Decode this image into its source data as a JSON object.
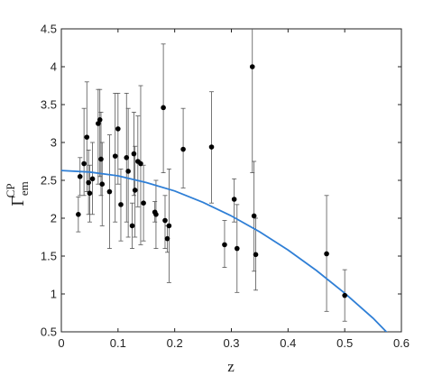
{
  "chart_data": {
    "type": "scatter",
    "xlabel": "z",
    "ylabel": {
      "base": "Γ",
      "sup": "CP",
      "sub": "em"
    },
    "xlim": [
      0,
      0.6
    ],
    "ylim": [
      0.5,
      4.5
    ],
    "xticks": [
      "0",
      "0.1",
      "0.2",
      "0.3",
      "0.4",
      "0.5",
      "0.6"
    ],
    "yticks": [
      "0.5",
      "1",
      "1.5",
      "2",
      "2.5",
      "3",
      "3.5",
      "4",
      "4.5"
    ],
    "grid": false,
    "colors": {
      "points": "#000000",
      "errorbars": "#555555",
      "fit_line": "#2f7fd6"
    },
    "points": [
      {
        "x": 0.03,
        "y": 2.05,
        "ylo": 1.82,
        "yhi": 2.28
      },
      {
        "x": 0.033,
        "y": 2.55,
        "ylo": 2.3,
        "yhi": 2.8
      },
      {
        "x": 0.04,
        "y": 2.72,
        "ylo": 2.3,
        "yhi": 3.45
      },
      {
        "x": 0.045,
        "y": 3.07,
        "ylo": 2.35,
        "yhi": 3.8
      },
      {
        "x": 0.048,
        "y": 2.47,
        "ylo": 2.05,
        "yhi": 2.9
      },
      {
        "x": 0.05,
        "y": 2.33,
        "ylo": 1.95,
        "yhi": 2.7
      },
      {
        "x": 0.055,
        "y": 2.52,
        "ylo": 2.05,
        "yhi": 3.0
      },
      {
        "x": 0.065,
        "y": 3.25,
        "ylo": 2.45,
        "yhi": 3.7
      },
      {
        "x": 0.068,
        "y": 3.3,
        "ylo": 2.55,
        "yhi": 3.7
      },
      {
        "x": 0.07,
        "y": 2.78,
        "ylo": 2.3,
        "yhi": 3.4
      },
      {
        "x": 0.072,
        "y": 2.45,
        "ylo": 1.9,
        "yhi": 3.0
      },
      {
        "x": 0.085,
        "y": 2.35,
        "ylo": 1.6,
        "yhi": 3.1
      },
      {
        "x": 0.095,
        "y": 2.82,
        "ylo": 1.95,
        "yhi": 3.65
      },
      {
        "x": 0.1,
        "y": 3.18,
        "ylo": 2.45,
        "yhi": 3.65
      },
      {
        "x": 0.105,
        "y": 2.18,
        "ylo": 1.7,
        "yhi": 2.65
      },
      {
        "x": 0.115,
        "y": 2.8,
        "ylo": 1.95,
        "yhi": 3.65
      },
      {
        "x": 0.118,
        "y": 2.62,
        "ylo": 1.75,
        "yhi": 3.45
      },
      {
        "x": 0.125,
        "y": 1.9,
        "ylo": 1.6,
        "yhi": 2.2
      },
      {
        "x": 0.128,
        "y": 2.85,
        "ylo": 2.3,
        "yhi": 3.4
      },
      {
        "x": 0.13,
        "y": 2.37,
        "ylo": 1.75,
        "yhi": 2.95
      },
      {
        "x": 0.135,
        "y": 2.75,
        "ylo": 2.15,
        "yhi": 3.35
      },
      {
        "x": 0.14,
        "y": 2.72,
        "ylo": 1.65,
        "yhi": 3.75
      },
      {
        "x": 0.145,
        "y": 2.2,
        "ylo": 1.7,
        "yhi": 2.7
      },
      {
        "x": 0.165,
        "y": 2.08,
        "ylo": 1.95,
        "yhi": 2.22
      },
      {
        "x": 0.167,
        "y": 2.05,
        "ylo": 1.6,
        "yhi": 2.5
      },
      {
        "x": 0.18,
        "y": 3.46,
        "ylo": 2.6,
        "yhi": 4.3
      },
      {
        "x": 0.183,
        "y": 1.97,
        "ylo": 1.6,
        "yhi": 2.3
      },
      {
        "x": 0.187,
        "y": 1.73,
        "ylo": 1.55,
        "yhi": 1.9
      },
      {
        "x": 0.19,
        "y": 1.9,
        "ylo": 1.15,
        "yhi": 2.65
      },
      {
        "x": 0.215,
        "y": 2.91,
        "ylo": 2.4,
        "yhi": 3.45
      },
      {
        "x": 0.265,
        "y": 2.94,
        "ylo": 2.2,
        "yhi": 3.67
      },
      {
        "x": 0.288,
        "y": 1.65,
        "ylo": 1.35,
        "yhi": 1.97
      },
      {
        "x": 0.305,
        "y": 2.25,
        "ylo": 1.95,
        "yhi": 2.52
      },
      {
        "x": 0.31,
        "y": 1.6,
        "ylo": 1.02,
        "yhi": 2.18
      },
      {
        "x": 0.337,
        "y": 4.0,
        "ylo": 2.6,
        "yhi": 4.5
      },
      {
        "x": 0.34,
        "y": 2.03,
        "ylo": 1.3,
        "yhi": 2.75
      },
      {
        "x": 0.343,
        "y": 1.52,
        "ylo": 1.05,
        "yhi": 2.0
      },
      {
        "x": 0.468,
        "y": 1.53,
        "ylo": 0.77,
        "yhi": 2.3
      },
      {
        "x": 0.5,
        "y": 0.98,
        "ylo": 0.64,
        "yhi": 1.32
      }
    ],
    "fit_line": {
      "x": [
        0.0,
        0.05,
        0.1,
        0.15,
        0.2,
        0.25,
        0.3,
        0.35,
        0.4,
        0.45,
        0.5,
        0.55,
        0.58
      ],
      "y": [
        2.63,
        2.61,
        2.56,
        2.47,
        2.36,
        2.21,
        2.03,
        1.82,
        1.58,
        1.31,
        1.01,
        0.68,
        0.45
      ]
    }
  }
}
